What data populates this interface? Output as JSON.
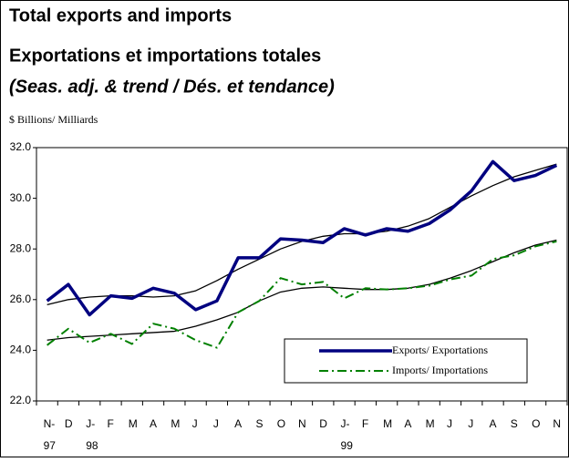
{
  "chart_data": {
    "type": "line",
    "title": "Total exports and imports",
    "subtitle": "Exportations et importations totales",
    "note": "(Seas. adj. & trend / Dés. et tendance)",
    "y_label": "$ Billions/ Milliards",
    "categories": [
      "N-97",
      "D",
      "J-98",
      "F",
      "M",
      "A",
      "M",
      "J",
      "J",
      "A",
      "S",
      "O",
      "N",
      "D",
      "J-99",
      "F",
      "M",
      "A",
      "M",
      "J",
      "J",
      "A",
      "S",
      "O",
      "N"
    ],
    "series": [
      {
        "name": "Exports/ Exportations",
        "color": "#000080",
        "style": "solid-thick",
        "values": [
          25.95,
          26.6,
          25.4,
          26.15,
          26.05,
          26.45,
          26.25,
          25.6,
          25.95,
          27.65,
          27.65,
          28.4,
          28.35,
          28.25,
          28.8,
          28.55,
          28.8,
          28.7,
          29.0,
          29.55,
          30.3,
          31.45,
          30.7,
          30.9,
          31.3
        ]
      },
      {
        "color": "#000000",
        "style": "solid-thin",
        "values": [
          25.8,
          26.0,
          26.1,
          26.15,
          26.15,
          26.1,
          26.15,
          26.35,
          26.75,
          27.2,
          27.6,
          28.0,
          28.3,
          28.5,
          28.6,
          28.6,
          28.7,
          28.9,
          29.2,
          29.65,
          30.1,
          30.5,
          30.85,
          31.1,
          31.35
        ]
      },
      {
        "name": "Imports/ Importations",
        "color": "#008000",
        "style": "dash-dot",
        "values": [
          24.2,
          24.85,
          24.3,
          24.65,
          24.25,
          25.05,
          24.85,
          24.4,
          24.1,
          25.5,
          25.95,
          26.85,
          26.6,
          26.7,
          26.05,
          26.45,
          26.4,
          26.45,
          26.55,
          26.8,
          26.95,
          27.6,
          27.75,
          28.1,
          28.3
        ]
      },
      {
        "color": "#000000",
        "style": "solid-thin",
        "values": [
          24.4,
          24.5,
          24.55,
          24.6,
          24.65,
          24.7,
          24.75,
          24.95,
          25.2,
          25.5,
          25.95,
          26.3,
          26.45,
          26.5,
          26.45,
          26.4,
          26.4,
          26.45,
          26.6,
          26.85,
          27.15,
          27.5,
          27.85,
          28.15,
          28.35
        ]
      }
    ],
    "ylim": [
      22,
      32
    ],
    "yticks": [
      {
        "value": 22,
        "label": "22.0"
      },
      {
        "value": 24,
        "label": "24.0"
      },
      {
        "value": 26,
        "label": "26.0"
      },
      {
        "value": 28,
        "label": "28.0"
      },
      {
        "value": 30,
        "label": "30.0"
      },
      {
        "value": 32,
        "label": "32.0"
      }
    ],
    "legend": "lower right"
  }
}
